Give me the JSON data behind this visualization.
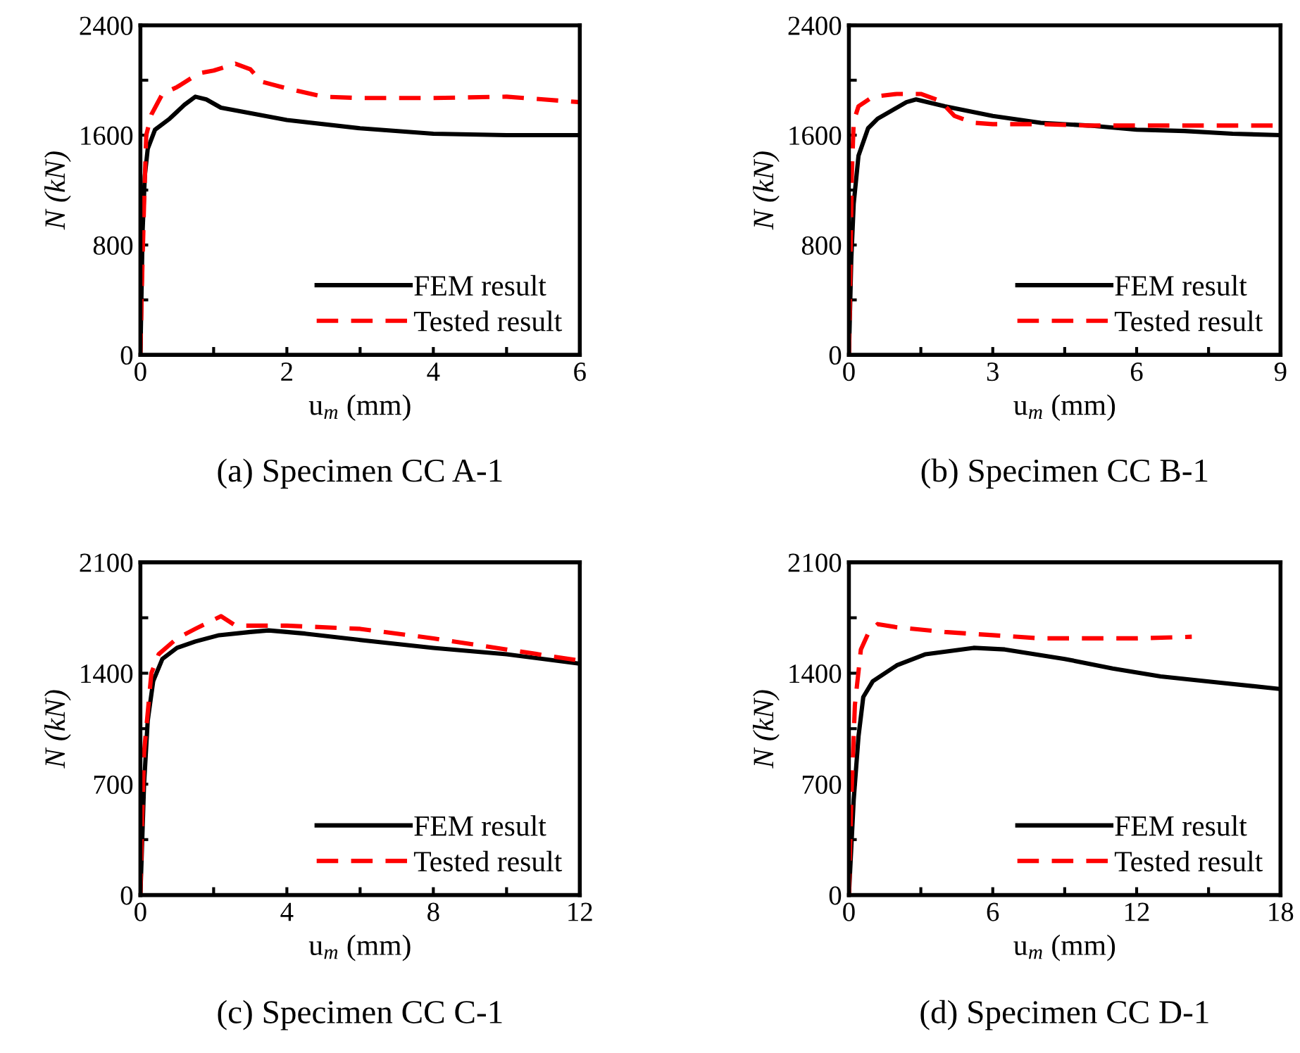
{
  "chart_data": [
    {
      "type": "line",
      "title": "(a) Specimen CC A-1",
      "xlabel": "u$_{m}$ (mm)",
      "ylabel": "N (kN)",
      "xlim": [
        0,
        6
      ],
      "ylim": [
        0,
        2400
      ],
      "xticks": [
        0,
        {
          "value": 1,
          "label": null
        },
        2,
        {
          "value": 3,
          "label": null
        },
        4,
        {
          "value": 5,
          "label": null
        },
        6
      ],
      "yticks": [
        0,
        {
          "value": 400,
          "label": null
        },
        800,
        {
          "value": 1200,
          "label": null
        },
        1600,
        {
          "value": 2000,
          "label": null
        },
        2400
      ],
      "legend": "bottom right",
      "series": [
        {
          "name": "FEM result",
          "color": "#000000",
          "line_style": "solid",
          "x": [
            0,
            0.03,
            0.06,
            0.1,
            0.2,
            0.4,
            0.6,
            0.75,
            0.9,
            1.1,
            1.5,
            2,
            3,
            4,
            5,
            6
          ],
          "values": [
            0,
            900,
            1300,
            1500,
            1640,
            1720,
            1820,
            1880,
            1860,
            1800,
            1760,
            1710,
            1650,
            1610,
            1600,
            1600
          ]
        },
        {
          "name": "Tested result",
          "color": "#ff0000",
          "line_style": "dashed",
          "x": [
            0,
            0.02,
            0.05,
            0.08,
            0.15,
            0.3,
            0.5,
            0.8,
            1.0,
            1.3,
            1.5,
            1.65,
            2,
            2.5,
            3,
            4,
            5,
            6
          ],
          "values": [
            0,
            500,
            1100,
            1600,
            1750,
            1900,
            1950,
            2050,
            2070,
            2120,
            2080,
            1990,
            1940,
            1880,
            1870,
            1870,
            1880,
            1840
          ]
        }
      ]
    },
    {
      "type": "line",
      "title": "(b) Specimen CC B-1",
      "xlabel": "u$_{m}$ (mm)",
      "ylabel": "N (kN)",
      "xlim": [
        0,
        9
      ],
      "ylim": [
        0,
        2400
      ],
      "xticks": [
        0,
        {
          "value": 1.5,
          "label": null
        },
        3,
        {
          "value": 4.5,
          "label": null
        },
        6,
        {
          "value": 7.5,
          "label": null
        },
        9
      ],
      "yticks": [
        0,
        {
          "value": 400,
          "label": null
        },
        800,
        {
          "value": 1200,
          "label": null
        },
        1600,
        {
          "value": 2000,
          "label": null
        },
        2400
      ],
      "legend": "bottom right",
      "series": [
        {
          "name": "FEM result",
          "color": "#000000",
          "line_style": "solid",
          "x": [
            0,
            0.05,
            0.1,
            0.2,
            0.4,
            0.6,
            0.9,
            1.2,
            1.4,
            2,
            3,
            4,
            5,
            6,
            7,
            8,
            9
          ],
          "values": [
            0,
            700,
            1100,
            1450,
            1650,
            1720,
            1780,
            1840,
            1860,
            1810,
            1740,
            1690,
            1670,
            1640,
            1630,
            1610,
            1600
          ]
        },
        {
          "name": "Tested result",
          "color": "#ff0000",
          "line_style": "dashed",
          "x": [
            0,
            0.03,
            0.06,
            0.1,
            0.2,
            0.5,
            1,
            1.5,
            1.9,
            2.2,
            2.6,
            3,
            4,
            5,
            6,
            7,
            8,
            9
          ],
          "values": [
            0,
            600,
            1300,
            1700,
            1810,
            1880,
            1900,
            1900,
            1850,
            1740,
            1690,
            1680,
            1680,
            1670,
            1670,
            1670,
            1670,
            1670
          ]
        }
      ]
    },
    {
      "type": "line",
      "title": "(c) Specimen CC C-1",
      "xlabel": "u$_{m}$ (mm)",
      "ylabel": "N (kN)",
      "xlim": [
        0,
        12
      ],
      "ylim": [
        0,
        2100
      ],
      "xticks": [
        0,
        {
          "value": 2,
          "label": null
        },
        4,
        {
          "value": 6,
          "label": null
        },
        8,
        {
          "value": 10,
          "label": null
        },
        12
      ],
      "yticks": [
        0,
        {
          "value": 350,
          "label": null
        },
        700,
        {
          "value": 1050,
          "label": null
        },
        1400,
        {
          "value": 1750,
          "label": null
        },
        2100
      ],
      "legend": "bottom right",
      "series": [
        {
          "name": "FEM result",
          "color": "#000000",
          "line_style": "solid",
          "x": [
            0,
            0.1,
            0.2,
            0.35,
            0.6,
            1,
            1.5,
            2.15,
            3,
            3.5,
            4.5,
            6,
            8,
            10,
            12
          ],
          "values": [
            0,
            700,
            1100,
            1350,
            1490,
            1560,
            1600,
            1640,
            1660,
            1670,
            1650,
            1610,
            1560,
            1520,
            1460
          ]
        },
        {
          "name": "Tested result",
          "color": "#ff0000",
          "line_style": "dashed",
          "x": [
            0,
            0.05,
            0.1,
            0.2,
            0.3,
            0.5,
            1,
            1.5,
            2.2,
            2.6,
            4,
            6,
            8,
            10,
            12
          ],
          "values": [
            0,
            500,
            900,
            1150,
            1400,
            1520,
            1620,
            1680,
            1760,
            1700,
            1700,
            1680,
            1620,
            1550,
            1480
          ]
        }
      ]
    },
    {
      "type": "line",
      "title": "(d) Specimen CC D-1",
      "xlabel": "u$_{m}$ (mm)",
      "ylabel": "N (kN)",
      "xlim": [
        0,
        18
      ],
      "ylim": [
        0,
        2100
      ],
      "xticks": [
        0,
        {
          "value": 3,
          "label": null
        },
        6,
        {
          "value": 9,
          "label": null
        },
        12,
        {
          "value": 15,
          "label": null
        },
        18
      ],
      "yticks": [
        0,
        {
          "value": 350,
          "label": null
        },
        700,
        {
          "value": 1050,
          "label": null
        },
        1400,
        {
          "value": 1750,
          "label": null
        },
        2100
      ],
      "legend": "bottom right",
      "series": [
        {
          "name": "FEM result",
          "color": "#000000",
          "line_style": "solid",
          "x": [
            0,
            0.2,
            0.4,
            0.6,
            1,
            2,
            3.2,
            5.2,
            6.5,
            9,
            11,
            13,
            15.5,
            18
          ],
          "values": [
            0,
            600,
            1000,
            1250,
            1350,
            1450,
            1520,
            1560,
            1550,
            1490,
            1430,
            1380,
            1340,
            1300
          ]
        },
        {
          "name": "Tested result",
          "color": "#ff0000",
          "line_style": "dashed",
          "x": [
            0,
            0.1,
            0.25,
            0.5,
            0.8,
            1.2,
            2,
            4,
            6,
            8,
            10,
            12,
            14.3
          ],
          "values": [
            0,
            600,
            1200,
            1550,
            1650,
            1710,
            1690,
            1660,
            1640,
            1620,
            1620,
            1620,
            1630
          ]
        }
      ]
    }
  ]
}
